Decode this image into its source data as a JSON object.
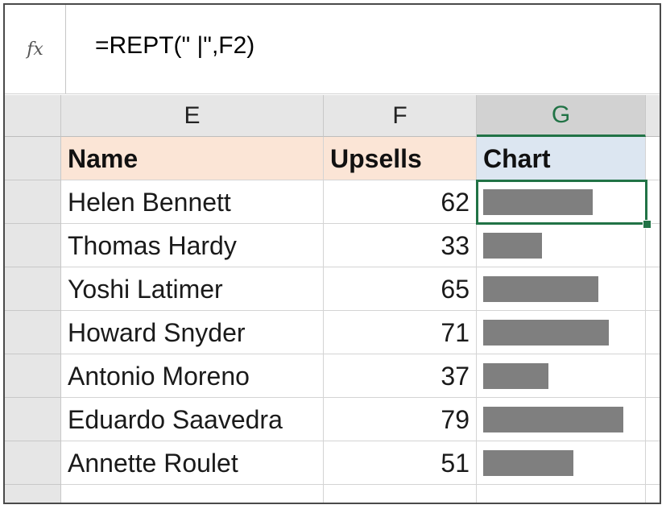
{
  "formula_bar": {
    "fx_icon": "fx",
    "formula": "=REPT(\" |\",F2)"
  },
  "columns": [
    "E",
    "F",
    "G"
  ],
  "selected_column": "G",
  "table": {
    "headers": [
      "Name",
      "Upsells",
      "Chart"
    ],
    "rows": [
      {
        "name": "Helen Bennett",
        "upsells": "62",
        "bar": 62
      },
      {
        "name": "Thomas Hardy",
        "upsells": "33",
        "bar": 33
      },
      {
        "name": "Yoshi Latimer",
        "upsells": "65",
        "bar": 65
      },
      {
        "name": "Howard Snyder",
        "upsells": "71",
        "bar": 71
      },
      {
        "name": "Antonio Moreno",
        "upsells": "37",
        "bar": 37
      },
      {
        "name": "Eduardo Saavedra",
        "upsells": "79",
        "bar": 79
      },
      {
        "name": "Annette Roulet",
        "upsells": "51",
        "bar": 51
      }
    ]
  },
  "colors": {
    "header_fill": "#fbe5d6",
    "chart_header_fill": "#dce6f1",
    "bar_color": "#7f7f7f",
    "selection_color": "#217346"
  }
}
